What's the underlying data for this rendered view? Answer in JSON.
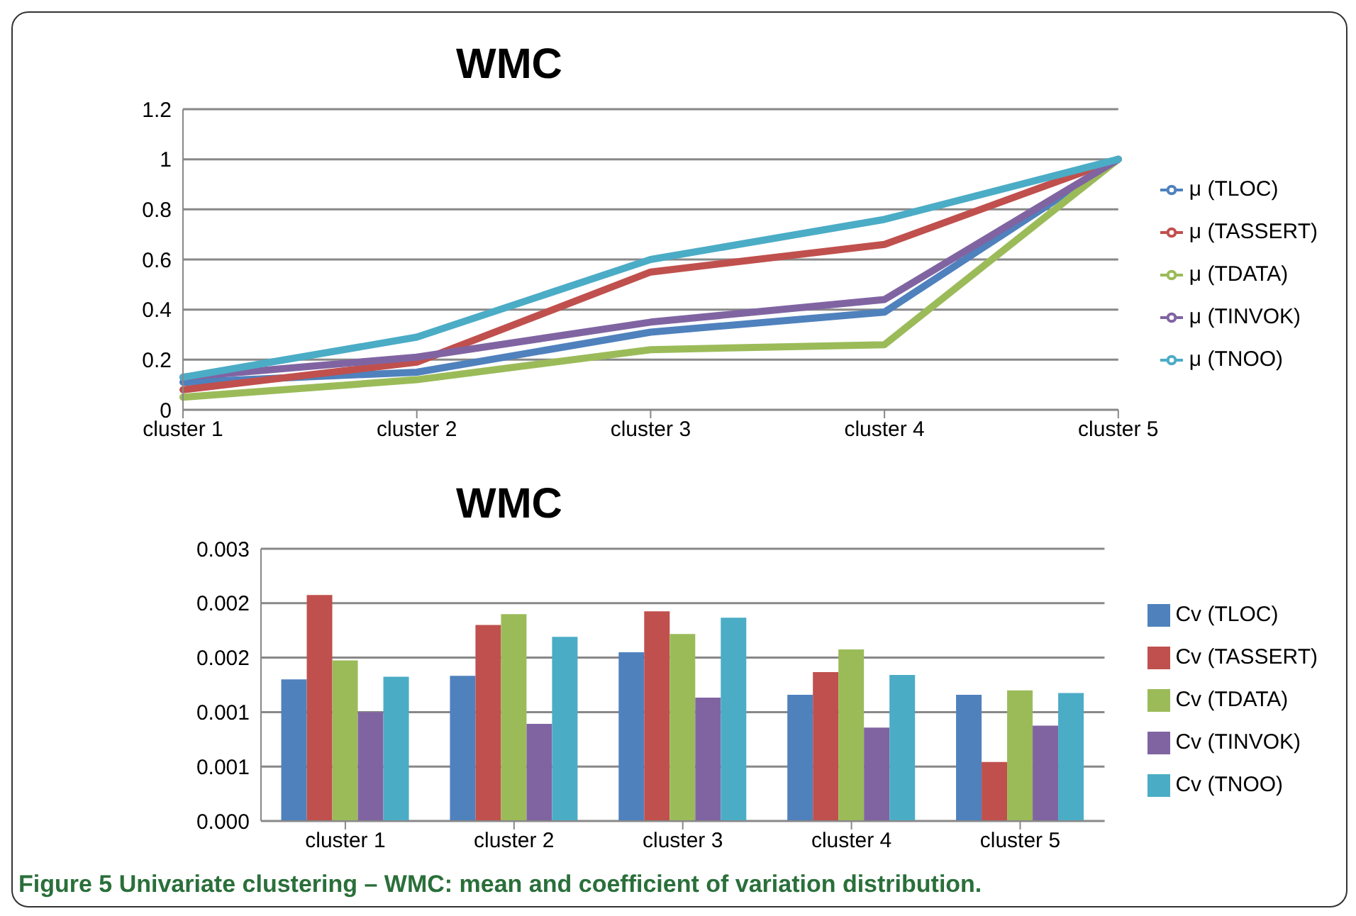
{
  "chart_data": [
    {
      "type": "line",
      "title": "WMC",
      "categories": [
        "cluster 1",
        "cluster 2",
        "cluster 3",
        "cluster 4",
        "cluster 5"
      ],
      "ylim": [
        0,
        1.2
      ],
      "yticks": [
        0,
        0.2,
        0.4,
        0.6,
        0.8,
        1,
        1.2
      ],
      "grid": "y",
      "legend": "right",
      "marker": "none",
      "series": [
        {
          "name": "μ (TLOC)",
          "color": "#4f81bd",
          "values": [
            0.11,
            0.15,
            0.31,
            0.39,
            1
          ]
        },
        {
          "name": "μ (TASSERT)",
          "color": "#c0504d",
          "values": [
            0.08,
            0.19,
            0.55,
            0.66,
            1
          ]
        },
        {
          "name": "μ (TDATA)",
          "color": "#9bbb59",
          "values": [
            0.05,
            0.12,
            0.24,
            0.26,
            1
          ]
        },
        {
          "name": "μ (TINVOK)",
          "color": "#8064a2",
          "values": [
            0.13,
            0.21,
            0.35,
            0.44,
            1
          ]
        },
        {
          "name": "μ (TNOO)",
          "color": "#4bacc6",
          "values": [
            0.13,
            0.29,
            0.6,
            0.76,
            1
          ]
        }
      ]
    },
    {
      "type": "bar",
      "title": "WMC",
      "categories": [
        "cluster 1",
        "cluster 2",
        "cluster 3",
        "cluster 4",
        "cluster 5"
      ],
      "ylim": [
        0,
        0.003
      ],
      "yticks": [
        {
          "value": 0,
          "label": "0.000"
        },
        {
          "value": 0.0006,
          "label": "0.001"
        },
        {
          "value": 0.0012,
          "label": "0.001"
        },
        {
          "value": 0.0018,
          "label": "0.002"
        },
        {
          "value": 0.0024,
          "label": "0.002"
        },
        {
          "value": 0.003,
          "label": "0.003"
        }
      ],
      "grid": "y",
      "legend": "right",
      "annotations": [
        "Figure 5 Univariate clustering – WMC: mean and coefficient of variation distribution."
      ],
      "series": [
        {
          "name": "Cv (TLOC)",
          "color": "#4f81bd",
          "values": [
            0.00156,
            0.0016,
            0.00186,
            0.00139,
            0.00139
          ]
        },
        {
          "name": "Cv (TASSERT)",
          "color": "#c0504d",
          "values": [
            0.00249,
            0.00216,
            0.00231,
            0.00164,
            0.00065
          ]
        },
        {
          "name": "Cv (TDATA)",
          "color": "#9bbb59",
          "values": [
            0.00177,
            0.00228,
            0.00206,
            0.00189,
            0.00144
          ]
        },
        {
          "name": "Cv (TINVOK)",
          "color": "#8064a2",
          "values": [
            0.0012,
            0.00107,
            0.00136,
            0.00103,
            0.00105
          ]
        },
        {
          "name": "Cv (TNOO)",
          "color": "#4bacc6",
          "values": [
            0.00159,
            0.00203,
            0.00224,
            0.00161,
            0.00141
          ]
        }
      ]
    }
  ]
}
